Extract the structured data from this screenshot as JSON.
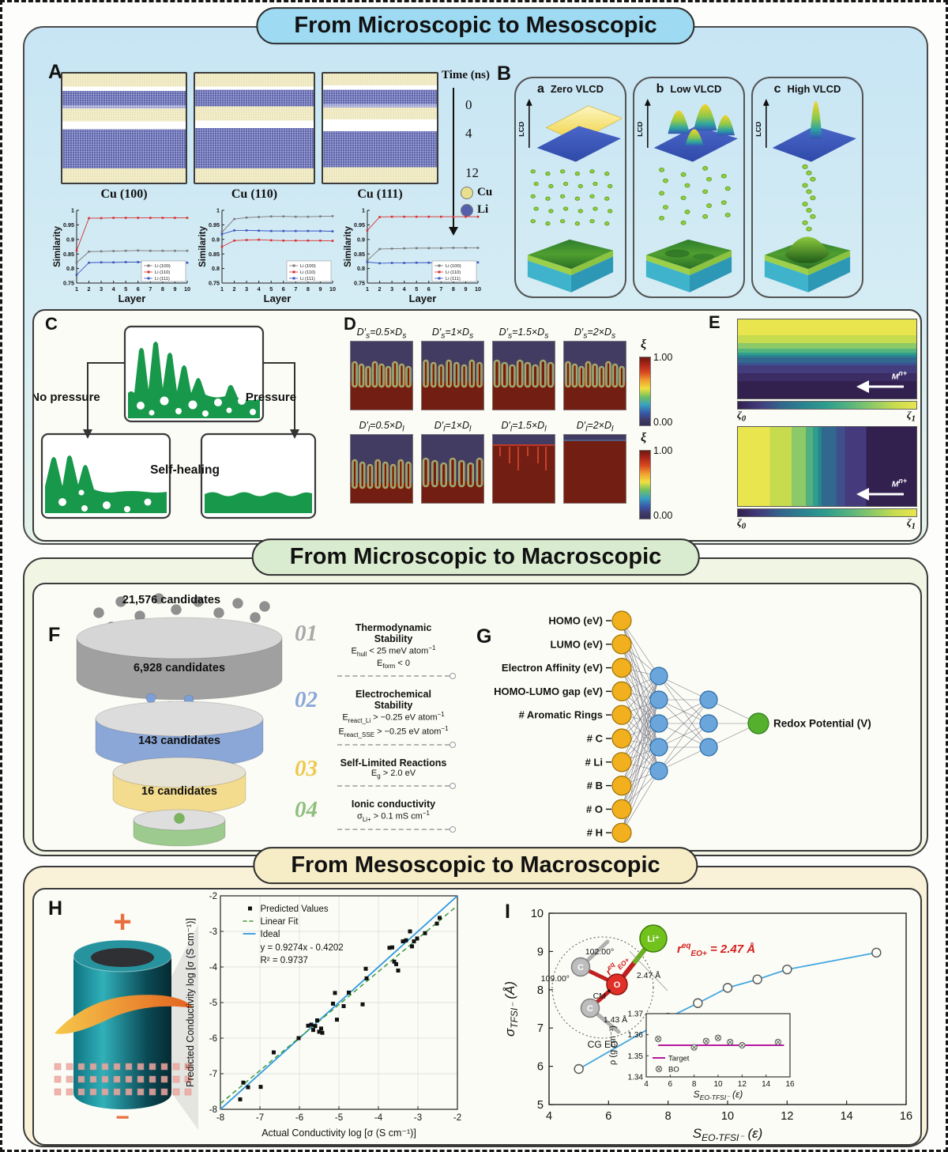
{
  "sections": {
    "top": {
      "title": "From Microscopic to Mesoscopic"
    },
    "mid": {
      "title": "From Microscopic to Macroscopic"
    },
    "bottom": {
      "title": "From Mesoscopic to Macroscopic"
    }
  },
  "panelA": {
    "label": "A",
    "snapshot_labels": [
      "Cu (100)",
      "Cu (110)",
      "Cu (111)"
    ],
    "time_axis": {
      "label": "Time (ns)",
      "ticks": [
        "0",
        "4",
        "12"
      ]
    },
    "legend": [
      {
        "name": "Cu",
        "color": "#e9e08e"
      },
      {
        "name": "Li",
        "color": "#5560ac"
      }
    ]
  },
  "panelB": {
    "label": "B",
    "axis_label": "LCD",
    "cards": [
      {
        "tag": "a",
        "title": "Zero VLCD"
      },
      {
        "tag": "b",
        "title": "Low VLCD"
      },
      {
        "tag": "c",
        "title": "High VLCD"
      }
    ]
  },
  "panelC": {
    "label": "C",
    "no_pressure": "No pressure",
    "pressure": "Pressure",
    "self_healing": "Self-healing"
  },
  "panelD": {
    "label": "D",
    "row1_labels": [
      "D′~s~=0.5×D~s~",
      "D′~s~=1×D~s~",
      "D′~s~=1.5×D~s~",
      "D′~s~=2×D~s~"
    ],
    "row2_labels": [
      "D′~l~=0.5×D~l~",
      "D′~l~=1×D~l~",
      "D′~l~=1.5×D~l~",
      "D′~l~=2×D~l~"
    ],
    "colorbar": {
      "symbol": "ξ",
      "max": "1.00",
      "min": "0.00"
    }
  },
  "panelE": {
    "label": "E",
    "arrow_label": "M^n+^",
    "cbar_left": "ζ~0~",
    "cbar_right": "ζ~1~"
  },
  "panelF": {
    "label": "F",
    "top_count": "21,576 candidates",
    "disks": [
      {
        "count": "6,928 candidates",
        "side": "#a0a0a0",
        "top": "#d6d6d6"
      },
      {
        "count": "143 candidates",
        "side": "#8aa7d8",
        "top": "#dcdcdc"
      },
      {
        "count": "16 candidates",
        "side": "#f3dc8e",
        "top": "#e6e2d4"
      },
      {
        "count": "",
        "side": "#9dca8e",
        "top": "#dedede"
      }
    ],
    "criteria": [
      {
        "num": "01",
        "color": "#a8a8a8",
        "title": "Thermodynamic Stability",
        "lines": [
          "E~hull~ < 25 meV atom^−1^",
          "E~form~ < 0"
        ]
      },
      {
        "num": "02",
        "color": "#8aa7d8",
        "title": "Electrochemical Stability",
        "lines": [
          "E~react_Li~ > −0.25 eV atom^−1^",
          "E~react_SSE~ > −0.25 eV atom^−1^"
        ]
      },
      {
        "num": "03",
        "color": "#edc94e",
        "title": "Self-Limited Reactions",
        "lines": [
          "E~g~ > 2.0 eV"
        ]
      },
      {
        "num": "04",
        "color": "#8fbf7f",
        "title": "Ionic conductivity",
        "lines": [
          "σ~Li+~ > 0.1 mS cm^−1^"
        ]
      }
    ]
  },
  "panelG": {
    "label": "G",
    "inputs": [
      "HOMO (eV)",
      "LUMO (eV)",
      "Electron Affinity (eV)",
      "HOMO-LUMO gap (eV)",
      "# Aromatic Rings",
      "# C",
      "# Li",
      "# B",
      "# O",
      "# H"
    ],
    "hidden1": 5,
    "hidden2": 3,
    "output_label": "Redox Potential (V)",
    "colors": {
      "input": "#f2b01e",
      "hidden": "#6aa5dc",
      "output": "#55b02e"
    }
  },
  "panelH": {
    "label": "H",
    "battery": {
      "positive": "+",
      "negative": "−"
    }
  },
  "panelI": {
    "label": "I",
    "molecule": {
      "li": "Li⁺",
      "o": "O",
      "c": "C",
      "cm": "CM",
      "angle_top": "102.00°",
      "angle_left": "109.00°",
      "bond_li": "2.47 Å",
      "bond_c": "1.43 Å",
      "group": "CG EO",
      "annotation_value": "= 2.47 Å",
      "annotation_r": "r",
      "annotation_sup": "eq",
      "annotation_sub": "EO+"
    }
  },
  "chart_data": [
    {
      "id": "similarity_cu100",
      "type": "line",
      "title": "Cu (100)",
      "xlabel": "Layer",
      "ylabel": "Similarity",
      "xlim": [
        1,
        10
      ],
      "ylim": [
        0.75,
        1
      ],
      "xticks": [
        1,
        2,
        3,
        4,
        5,
        6,
        7,
        8,
        9,
        10
      ],
      "yticks": [
        0.75,
        0.8,
        0.85,
        0.9,
        0.95,
        1
      ],
      "x": [
        1,
        2,
        3,
        4,
        5,
        6,
        7,
        8,
        9,
        10
      ],
      "series": [
        {
          "name": "Li (100)",
          "color": "#7a7a7a",
          "values": [
            0.82,
            0.858,
            0.859,
            0.86,
            0.861,
            0.862,
            0.861,
            0.861,
            0.861,
            0.861
          ]
        },
        {
          "name": "Li (110)",
          "color": "#d83030",
          "values": [
            0.862,
            0.973,
            0.973,
            0.974,
            0.974,
            0.974,
            0.974,
            0.974,
            0.974,
            0.974
          ]
        },
        {
          "name": "Li (111)",
          "color": "#3a55c0",
          "values": [
            0.778,
            0.82,
            0.821,
            0.821,
            0.822,
            0.822,
            0.822,
            0.821,
            0.821,
            0.82
          ]
        }
      ],
      "legend_position": "bottom-right",
      "grid": false
    },
    {
      "id": "similarity_cu110",
      "type": "line",
      "title": "Cu (110)",
      "xlabel": "Layer",
      "ylabel": "Similarity",
      "xlim": [
        1,
        10
      ],
      "ylim": [
        0.75,
        1
      ],
      "xticks": [
        1,
        2,
        3,
        4,
        5,
        6,
        7,
        8,
        9,
        10
      ],
      "yticks": [
        0.75,
        0.8,
        0.85,
        0.9,
        0.95,
        1
      ],
      "x": [
        1,
        2,
        3,
        4,
        5,
        6,
        7,
        8,
        9,
        10
      ],
      "series": [
        {
          "name": "Li (100)",
          "color": "#7a7a7a",
          "values": [
            0.925,
            0.97,
            0.975,
            0.977,
            0.979,
            0.979,
            0.978,
            0.978,
            0.979,
            0.98
          ]
        },
        {
          "name": "Li (110)",
          "color": "#d83030",
          "values": [
            0.875,
            0.896,
            0.898,
            0.899,
            0.897,
            0.896,
            0.896,
            0.896,
            0.896,
            0.895
          ]
        },
        {
          "name": "Li (111)",
          "color": "#3a55c0",
          "values": [
            0.918,
            0.931,
            0.931,
            0.93,
            0.929,
            0.929,
            0.929,
            0.929,
            0.929,
            0.928
          ]
        }
      ],
      "legend_position": "bottom-right",
      "grid": false
    },
    {
      "id": "similarity_cu111",
      "type": "line",
      "title": "Cu (111)",
      "xlabel": "Layer",
      "ylabel": "Similarity",
      "xlim": [
        1,
        10
      ],
      "ylim": [
        0.75,
        1
      ],
      "xticks": [
        1,
        2,
        3,
        4,
        5,
        6,
        7,
        8,
        9,
        10
      ],
      "yticks": [
        0.75,
        0.8,
        0.85,
        0.9,
        0.95,
        1
      ],
      "x": [
        1,
        2,
        3,
        4,
        5,
        6,
        7,
        8,
        9,
        10
      ],
      "series": [
        {
          "name": "Li (100)",
          "color": "#7a7a7a",
          "values": [
            0.828,
            0.867,
            0.868,
            0.869,
            0.87,
            0.87,
            0.87,
            0.871,
            0.871,
            0.871
          ]
        },
        {
          "name": "Li (110)",
          "color": "#d83030",
          "values": [
            0.931,
            0.977,
            0.978,
            0.978,
            0.978,
            0.978,
            0.978,
            0.978,
            0.978,
            0.978
          ]
        },
        {
          "name": "Li (111)",
          "color": "#3a55c0",
          "values": [
            0.822,
            0.818,
            0.819,
            0.819,
            0.82,
            0.82,
            0.82,
            0.82,
            0.82,
            0.821
          ]
        }
      ],
      "legend_position": "bottom-right",
      "grid": false
    },
    {
      "id": "conductivity_parity",
      "type": "scatter",
      "xlabel": "Actual Conductivity log [σ (S cm⁻¹)]",
      "ylabel": "Predicted Conductivity log [σ (S cm⁻¹)]",
      "xlim": [
        -8,
        -2
      ],
      "ylim": [
        -8,
        -2
      ],
      "xticks": [
        -8,
        -7,
        -6,
        -5,
        -4,
        -3,
        -2
      ],
      "yticks": [
        -8,
        -7,
        -6,
        -5,
        -4,
        -3,
        -2
      ],
      "grid": true,
      "legend": [
        "Predicted Values",
        "Linear Fit",
        "Ideal"
      ],
      "fit_equation": "y = 0.9274x - 0.4202",
      "r_squared": "R² = 0.9737",
      "linear_fit": {
        "slope": 0.9274,
        "intercept": -0.4202
      },
      "ideal_line": true,
      "points": [
        [
          -7.5,
          -7.72
        ],
        [
          -7.42,
          -7.25
        ],
        [
          -7.3,
          -7.38
        ],
        [
          -6.98,
          -7.37
        ],
        [
          -6.65,
          -6.4
        ],
        [
          -6.02,
          -6.0
        ],
        [
          -5.78,
          -5.65
        ],
        [
          -5.7,
          -5.62
        ],
        [
          -5.65,
          -5.77
        ],
        [
          -5.6,
          -5.66
        ],
        [
          -5.55,
          -5.5
        ],
        [
          -5.5,
          -5.82
        ],
        [
          -5.45,
          -5.73
        ],
        [
          -5.42,
          -5.85
        ],
        [
          -5.15,
          -5.03
        ],
        [
          -5.1,
          -4.73
        ],
        [
          -5.05,
          -5.48
        ],
        [
          -4.88,
          -5.1
        ],
        [
          -4.75,
          -4.72
        ],
        [
          -4.4,
          -5.05
        ],
        [
          -4.32,
          -4.05
        ],
        [
          -4.3,
          -4.32
        ],
        [
          -3.72,
          -3.46
        ],
        [
          -3.65,
          -3.45
        ],
        [
          -3.6,
          -3.85
        ],
        [
          -3.55,
          -3.92
        ],
        [
          -3.5,
          -4.1
        ],
        [
          -3.38,
          -3.28
        ],
        [
          -3.3,
          -3.25
        ],
        [
          -3.2,
          -3.0
        ],
        [
          -3.15,
          -3.42
        ],
        [
          -3.1,
          -3.28
        ],
        [
          -3.02,
          -3.2
        ],
        [
          -2.82,
          -3.05
        ],
        [
          -2.52,
          -2.78
        ],
        [
          -2.45,
          -2.62
        ]
      ]
    },
    {
      "id": "sigma_vs_s",
      "type": "line",
      "xlabel": [
        "S",
        "EO-TFSI⁻",
        " (ε)"
      ],
      "ylabel": [
        "σ",
        "TFSI⁻",
        " (Å)"
      ],
      "xlim": [
        4,
        16
      ],
      "ylim": [
        5,
        10
      ],
      "xticks": [
        4,
        6,
        8,
        10,
        12,
        14,
        16
      ],
      "yticks": [
        5,
        6,
        7,
        8,
        9,
        10
      ],
      "marker": "open-circle",
      "line_color": "#44a8e0",
      "x": [
        5,
        8,
        9,
        10,
        11,
        12,
        15
      ],
      "values": [
        5.93,
        7.27,
        7.65,
        8.05,
        8.27,
        8.53,
        8.97
      ]
    },
    {
      "id": "density_inset",
      "type": "scatter",
      "xlabel": [
        "S",
        "EO-TFSI⁻",
        " (ε)"
      ],
      "ylabel": "ρ (g cm⁻³)",
      "xlim": [
        4,
        16
      ],
      "ylim": [
        1.34,
        1.37
      ],
      "xticks": [
        4,
        6,
        8,
        10,
        12,
        14,
        16
      ],
      "yticks": [
        "1.34",
        "1.35",
        "1.36",
        "1.37"
      ],
      "target_line": 1.355,
      "target_color": "#b5179e",
      "legend": [
        "Target",
        "BO"
      ],
      "points": [
        [
          5,
          1.358
        ],
        [
          8,
          1.354
        ],
        [
          9,
          1.357
        ],
        [
          10,
          1.3585
        ],
        [
          11,
          1.3565
        ],
        [
          12,
          1.355
        ],
        [
          15,
          1.3565
        ]
      ]
    }
  ]
}
